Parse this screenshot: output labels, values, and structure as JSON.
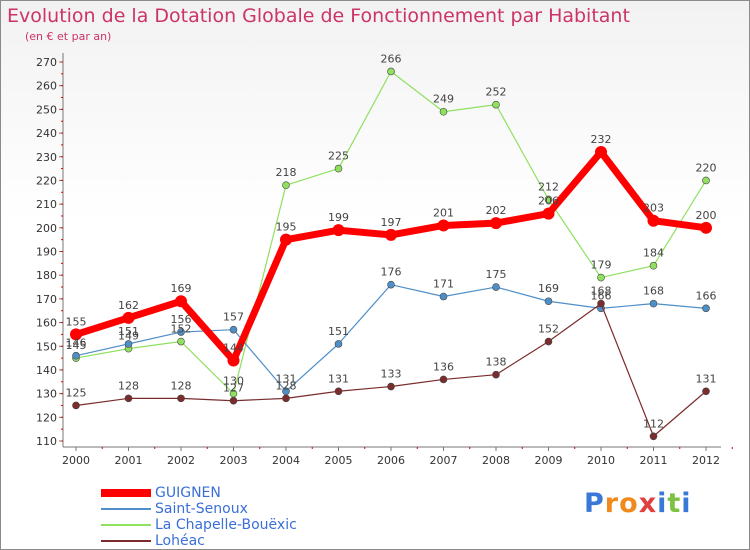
{
  "title": "Evolution de la Dotation Globale de Fonctionnement par Habitant",
  "subtitle": "(en € et par an)",
  "logo": "Proxiti",
  "chart_data": {
    "type": "line",
    "x": [
      "2000",
      "2001",
      "2002",
      "2003",
      "2004",
      "2005",
      "2006",
      "2007",
      "2008",
      "2009",
      "2010",
      "2011",
      "2012"
    ],
    "ylim": [
      110,
      270
    ],
    "yticks": [
      110,
      120,
      130,
      140,
      150,
      160,
      170,
      180,
      190,
      200,
      210,
      220,
      230,
      240,
      250,
      260,
      270
    ],
    "grid": false,
    "legend_position": "bottom-left",
    "series": [
      {
        "name": "GUIGNEN",
        "color": "#ff0000",
        "values": [
          155,
          162,
          169,
          144,
          195,
          199,
          197,
          201,
          202,
          206,
          232,
          203,
          200
        ]
      },
      {
        "name": "Saint-Senoux",
        "color": "#4f8fc8",
        "values": [
          146,
          151,
          156,
          157,
          131,
          151,
          176,
          171,
          175,
          169,
          166,
          168,
          166
        ]
      },
      {
        "name": "La Chapelle-Bouëxic",
        "color": "#90e060",
        "values": [
          145,
          149,
          152,
          130,
          218,
          225,
          266,
          249,
          252,
          212,
          179,
          184,
          220
        ]
      },
      {
        "name": "Lohéac",
        "color": "#7b2c2c",
        "values": [
          125,
          128,
          128,
          127,
          128,
          131,
          133,
          136,
          138,
          152,
          168,
          112,
          131
        ]
      }
    ]
  }
}
